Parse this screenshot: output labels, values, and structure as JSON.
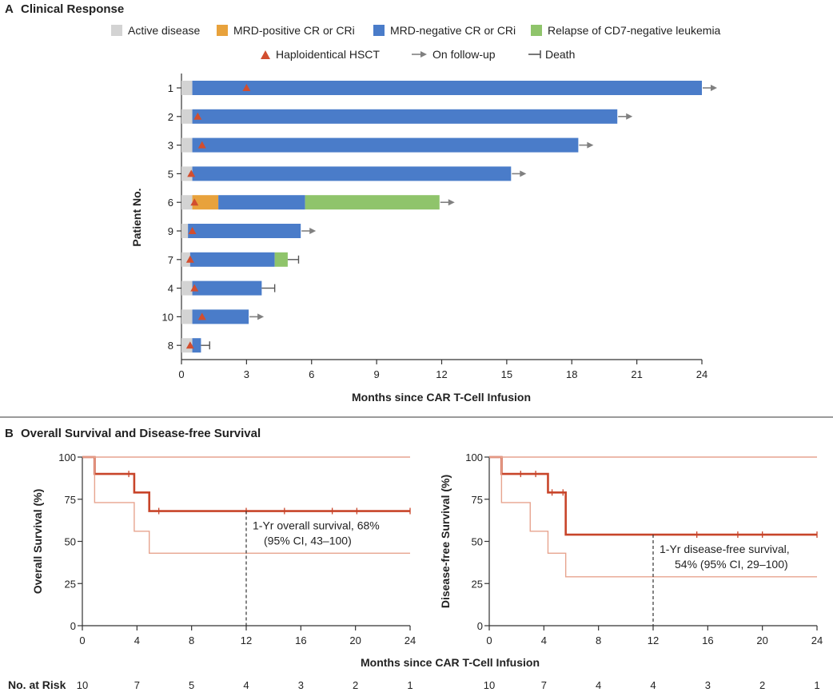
{
  "panel_a": {
    "label": "A",
    "title": "Clinical Response",
    "legend": {
      "active": "Active disease",
      "mrd_pos": "MRD-positive CR or CRi",
      "mrd_neg": "MRD-negative CR or CRi",
      "relapse": "Relapse of CD7-negative leukemia",
      "hsct": "Haploidentical HSCT",
      "followup": "On follow-up",
      "death": "Death"
    },
    "colors": {
      "active": "#d3d3d3",
      "mrd_pos": "#e8a23c",
      "mrd_neg": "#4a7cc9",
      "relapse": "#8fc46b",
      "hsct": "#d24e2f",
      "arrow": "#808080"
    }
  },
  "panel_b": {
    "label": "B",
    "title": "Overall Survival and Disease-free Survival",
    "risk_label": "No. at Risk"
  },
  "chart_data": [
    {
      "type": "bar",
      "orientation": "horizontal-stacked (swimmer plot)",
      "title": "Clinical Response",
      "xlabel": "Months since CAR T-Cell Infusion",
      "ylabel": "Patient No.",
      "xlim": [
        0,
        24
      ],
      "xticks": [
        0,
        3,
        6,
        9,
        12,
        15,
        18,
        21,
        24
      ],
      "categories": [
        "1",
        "2",
        "3",
        "5",
        "6",
        "9",
        "7",
        "4",
        "10",
        "8"
      ],
      "patients": [
        {
          "id": "1",
          "segments": [
            {
              "state": "active",
              "from": 0,
              "to": 0.5
            },
            {
              "state": "mrd_neg",
              "from": 0.5,
              "to": 24.0
            }
          ],
          "hsct": 3.0,
          "end": "follow-up"
        },
        {
          "id": "2",
          "segments": [
            {
              "state": "active",
              "from": 0,
              "to": 0.5
            },
            {
              "state": "mrd_neg",
              "from": 0.5,
              "to": 20.1
            }
          ],
          "hsct": 0.75,
          "end": "follow-up"
        },
        {
          "id": "3",
          "segments": [
            {
              "state": "active",
              "from": 0,
              "to": 0.5
            },
            {
              "state": "mrd_neg",
              "from": 0.5,
              "to": 18.3
            }
          ],
          "hsct": 0.95,
          "end": "follow-up"
        },
        {
          "id": "5",
          "segments": [
            {
              "state": "active",
              "from": 0,
              "to": 0.5
            },
            {
              "state": "mrd_neg",
              "from": 0.5,
              "to": 15.2
            }
          ],
          "hsct": 0.45,
          "end": "follow-up"
        },
        {
          "id": "6",
          "segments": [
            {
              "state": "active",
              "from": 0,
              "to": 0.5
            },
            {
              "state": "mrd_pos",
              "from": 0.5,
              "to": 1.7
            },
            {
              "state": "mrd_neg",
              "from": 1.7,
              "to": 5.7
            },
            {
              "state": "relapse",
              "from": 5.7,
              "to": 11.9
            }
          ],
          "hsct": 0.6,
          "end": "follow-up"
        },
        {
          "id": "9",
          "segments": [
            {
              "state": "active",
              "from": 0,
              "to": 0.3
            },
            {
              "state": "mrd_neg",
              "from": 0.3,
              "to": 5.5
            }
          ],
          "hsct": 0.5,
          "end": "follow-up"
        },
        {
          "id": "7",
          "segments": [
            {
              "state": "active",
              "from": 0,
              "to": 0.4
            },
            {
              "state": "mrd_neg",
              "from": 0.4,
              "to": 4.3
            },
            {
              "state": "relapse",
              "from": 4.3,
              "to": 4.9
            }
          ],
          "hsct": 0.4,
          "end": "death",
          "end_at": 5.4
        },
        {
          "id": "4",
          "segments": [
            {
              "state": "active",
              "from": 0,
              "to": 0.5
            },
            {
              "state": "mrd_neg",
              "from": 0.5,
              "to": 3.7
            }
          ],
          "hsct": 0.6,
          "end": "death",
          "end_at": 4.3
        },
        {
          "id": "10",
          "segments": [
            {
              "state": "active",
              "from": 0,
              "to": 0.5
            },
            {
              "state": "mrd_neg",
              "from": 0.5,
              "to": 3.1
            }
          ],
          "hsct": 0.95,
          "end": "follow-up"
        },
        {
          "id": "8",
          "segments": [
            {
              "state": "active",
              "from": 0,
              "to": 0.5
            },
            {
              "state": "mrd_neg",
              "from": 0.5,
              "to": 0.9
            }
          ],
          "hsct": 0.4,
          "end": "death",
          "end_at": 1.3
        }
      ]
    },
    {
      "type": "line",
      "subtype": "kaplan-meier",
      "ylabel": "Overall Survival (%)",
      "xlabel": "Months since CAR T-Cell Infusion",
      "xlim": [
        0,
        24
      ],
      "ylim": [
        0,
        100
      ],
      "xticks": [
        0,
        4,
        8,
        12,
        16,
        20,
        24
      ],
      "yticks": [
        0,
        25,
        50,
        75,
        100
      ],
      "series": [
        {
          "role": "estimate",
          "x": [
            0,
            0.9,
            3.8,
            4.9,
            24
          ],
          "y": [
            100,
            90,
            79,
            68,
            68
          ]
        },
        {
          "role": "ci_upper",
          "x": [
            0,
            24
          ],
          "y": [
            100,
            100
          ]
        },
        {
          "role": "ci_lower",
          "x": [
            0,
            0.9,
            3.8,
            4.9,
            24
          ],
          "y": [
            100,
            73,
            56,
            43,
            43
          ]
        }
      ],
      "censor_x": [
        3.4,
        5.6,
        12.0,
        14.8,
        18.3,
        20.1,
        24.0
      ],
      "annotation": {
        "x": 12,
        "y": 68,
        "line1": "1-Yr overall survival, 68%",
        "line2": "(95% CI, 43–100)"
      },
      "risk": [
        10,
        7,
        5,
        4,
        3,
        2,
        1
      ]
    },
    {
      "type": "line",
      "subtype": "kaplan-meier",
      "ylabel": "Disease-free Survival (%)",
      "xlabel": "Months since CAR T-Cell Infusion",
      "xlim": [
        0,
        24
      ],
      "ylim": [
        0,
        100
      ],
      "xticks": [
        0,
        4,
        8,
        12,
        16,
        20,
        24
      ],
      "yticks": [
        0,
        25,
        50,
        75,
        100
      ],
      "series": [
        {
          "role": "estimate",
          "x": [
            0,
            0.9,
            3.0,
            4.3,
            5.6,
            24
          ],
          "y": [
            100,
            90,
            90,
            79,
            54,
            54
          ]
        },
        {
          "role": "ci_upper",
          "x": [
            0,
            24
          ],
          "y": [
            100,
            100
          ]
        },
        {
          "role": "ci_lower",
          "x": [
            0,
            0.9,
            3.0,
            4.3,
            5.6,
            24
          ],
          "y": [
            100,
            73,
            56,
            43,
            29,
            29
          ]
        }
      ],
      "censor_x": [
        2.3,
        3.4,
        4.6,
        5.4,
        15.2,
        18.2,
        20.0,
        24.0
      ],
      "annotation": {
        "x": 12,
        "y": 54,
        "line1": "1-Yr disease-free survival,",
        "line2": "54% (95% CI, 29–100)"
      },
      "risk": [
        10,
        7,
        4,
        4,
        3,
        2,
        1
      ]
    }
  ]
}
